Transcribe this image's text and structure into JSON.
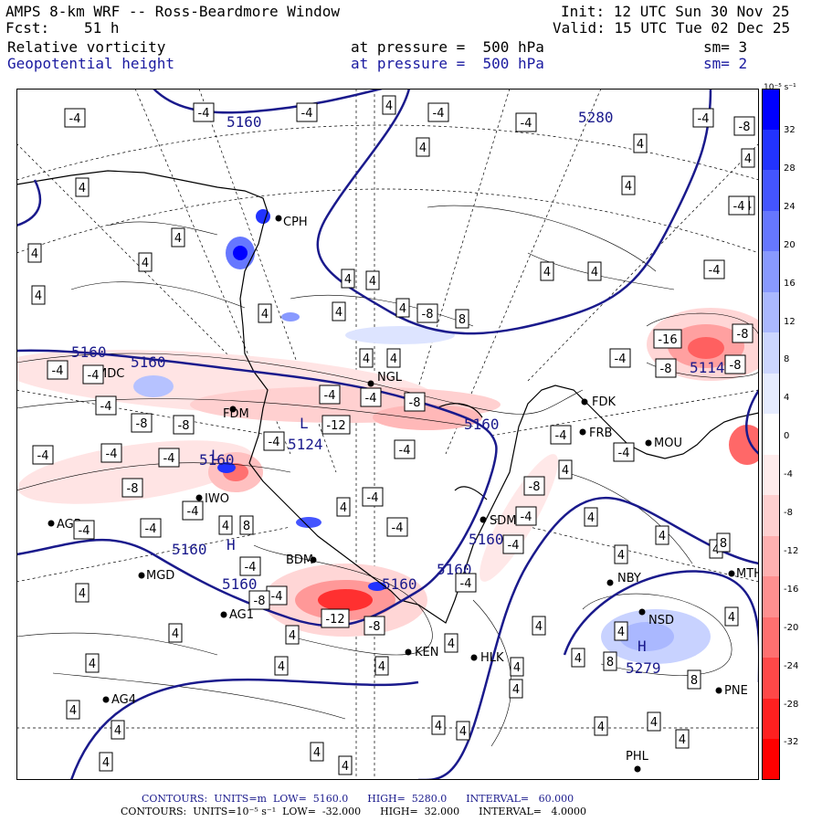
{
  "header": {
    "title": "AMPS 8-km WRF -- Ross-Beardmore Window",
    "fcst_label": "Fcst:",
    "fcst_value": "51 h",
    "init": "Init: 12 UTC Sun 30 Nov 25",
    "valid": "Valid: 15 UTC Tue 02 Dec 25",
    "field1": "Relative vorticity",
    "field1_level": "at pressure =  500 hPa",
    "field1_sm": "sm= 3",
    "field2": "Geopotential height",
    "field2_level": "at pressure =  500 hPa",
    "field2_sm": "sm= 2"
  },
  "colorbar": {
    "unit": "10⁻⁵ s⁻¹",
    "ticks": [
      "32",
      "28",
      "24",
      "20",
      "16",
      "12",
      "8",
      "4",
      "0",
      "-4",
      "-8",
      "-12",
      "-16",
      "-20",
      "-24",
      "-28",
      "-32"
    ],
    "colors": [
      "#0000ff",
      "#2233ff",
      "#4455ff",
      "#6677ff",
      "#8899ff",
      "#aab8ff",
      "#ccd6ff",
      "#e6ecff",
      "#ffffff",
      "#ffecec",
      "#ffd0d0",
      "#ffb0b0",
      "#ff9090",
      "#ff7070",
      "#ff4848",
      "#ff2020",
      "#ff0000"
    ]
  },
  "footer": {
    "line1": "CONTOURS:  UNITS=m  LOW=  5160.0      HIGH=  5280.0      INTERVAL=   60.000",
    "line2": "CONTOURS:  UNITS=10⁻⁵ s⁻¹  LOW=  -32.000      HIGH=  32.000      INTERVAL=   4.0000"
  },
  "stations": [
    {
      "name": "CPH"
    },
    {
      "name": "NGL"
    },
    {
      "name": "MDC"
    },
    {
      "name": "FDM"
    },
    {
      "name": "FDK"
    },
    {
      "name": "FRB"
    },
    {
      "name": "MOU"
    },
    {
      "name": "IWO"
    },
    {
      "name": "AGB"
    },
    {
      "name": "SDM"
    },
    {
      "name": "BDM"
    },
    {
      "name": "MGD"
    },
    {
      "name": "NBY"
    },
    {
      "name": "MTH"
    },
    {
      "name": "AG1"
    },
    {
      "name": "NSD"
    },
    {
      "name": "KEN"
    },
    {
      "name": "HLK"
    },
    {
      "name": "AG4"
    },
    {
      "name": "PNE"
    },
    {
      "name": "PHL"
    }
  ],
  "height_labels": [
    "5160",
    "5160",
    "5160",
    "5160",
    "5160",
    "5160",
    "5124",
    "5280",
    "5114",
    "5279",
    "5160",
    "5160",
    "5160",
    "5160"
  ],
  "map_symbols": [
    "L",
    "L",
    "H",
    "H"
  ]
}
